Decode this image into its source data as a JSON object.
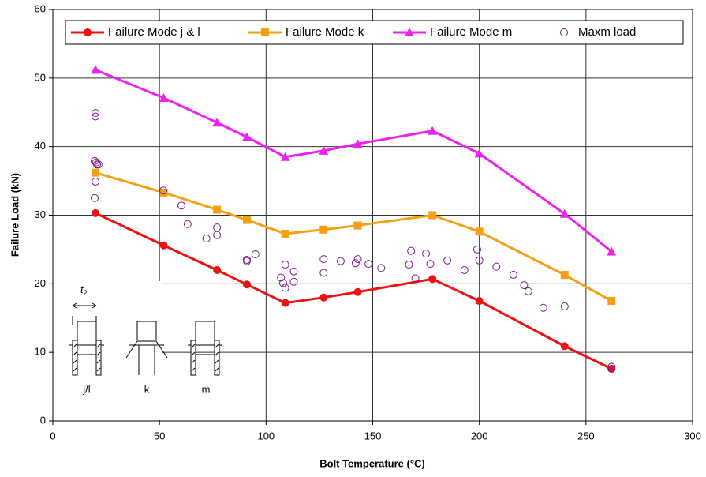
{
  "chart_data": {
    "type": "line",
    "x_label": "Bolt Temperature (°C)",
    "y_label": "Failure Load (kN)",
    "xlim": [
      0,
      300
    ],
    "xticks": [
      0,
      50,
      100,
      150,
      200,
      250,
      300
    ],
    "ylim": [
      0,
      60
    ],
    "yticks": [
      0,
      10,
      20,
      30,
      40,
      50,
      60
    ],
    "grid": true,
    "legend": "top",
    "x": [
      20,
      52,
      77,
      91,
      109,
      127,
      143,
      178,
      200,
      240,
      262
    ],
    "series": [
      {
        "name": "Failure Mode j & l",
        "color": "#ee1111",
        "marker": "circle",
        "values": [
          30.3,
          25.6,
          22.0,
          19.9,
          17.2,
          18.0,
          18.8,
          20.7,
          17.5,
          10.9,
          7.6
        ]
      },
      {
        "name": "Failure Mode k",
        "color": "#f5a012",
        "marker": "square",
        "values": [
          36.2,
          33.3,
          30.8,
          29.3,
          27.3,
          27.9,
          28.5,
          30.0,
          27.6,
          21.3,
          17.5
        ]
      },
      {
        "name": "Failure Mode m",
        "color": "#ee22ee",
        "marker": "triangle",
        "values": [
          51.2,
          47.1,
          43.5,
          41.4,
          38.5,
          39.4,
          40.4,
          42.3,
          39.0,
          30.2,
          24.7
        ]
      }
    ],
    "scatter": {
      "name": "Maxm load",
      "color": "#7a1a8a",
      "x": [
        20,
        20,
        19.6,
        20.3,
        20.7,
        21.4,
        20,
        19.6,
        51.8,
        60.3,
        63.2,
        72,
        77,
        77,
        91,
        91,
        95,
        107,
        108,
        109,
        109,
        113,
        113,
        127,
        127,
        135,
        142,
        143,
        148,
        154,
        167,
        168,
        170,
        175,
        177,
        185,
        193,
        199,
        200,
        208,
        216,
        221,
        223,
        230,
        240,
        262,
        262
      ],
      "values": [
        44.9,
        44.4,
        37.9,
        37.7,
        37.4,
        37.4,
        34.9,
        32.5,
        33.6,
        31.4,
        28.7,
        26.6,
        28.2,
        27.1,
        23.3,
        23.5,
        24.3,
        20.9,
        20.1,
        19.4,
        22.8,
        21.8,
        20.3,
        23.6,
        21.6,
        23.3,
        23.0,
        23.6,
        22.9,
        22.3,
        22.8,
        24.8,
        20.8,
        24.4,
        22.9,
        23.4,
        22.0,
        25.0,
        23.4,
        22.5,
        21.3,
        19.8,
        18.9,
        16.5,
        16.7,
        7.9,
        7.6
      ]
    },
    "inset": {
      "dimension": {
        "symbol": "t",
        "subscript": "2"
      },
      "labels": [
        "j/l",
        "k",
        "m"
      ]
    }
  }
}
